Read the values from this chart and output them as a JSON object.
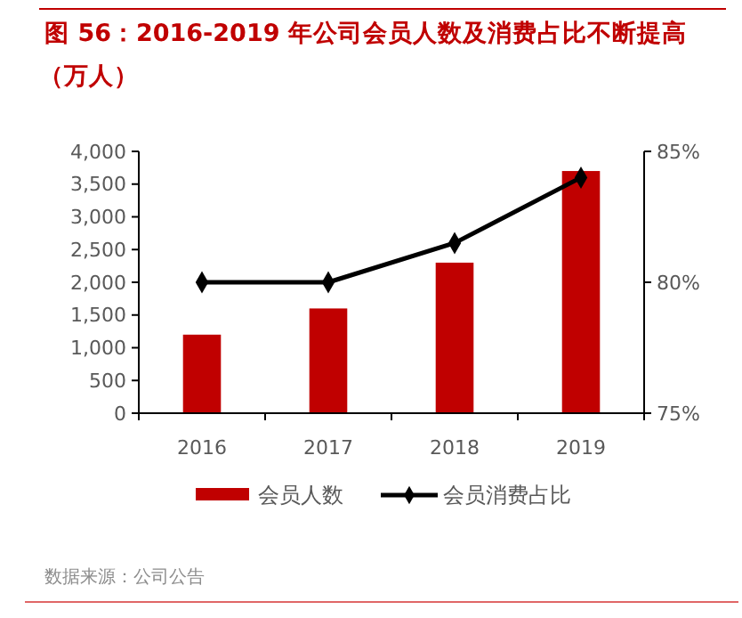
{
  "chart_data": {
    "type": "bar",
    "title": "图 56：2016-2019 年公司会员人数及消费占比不断提高",
    "subtitle": "（万人）",
    "categories": [
      "2016",
      "2017",
      "2018",
      "2019"
    ],
    "series": [
      {
        "name": "会员人数",
        "color": "#c00000",
        "values": [
          1200,
          1600,
          2300,
          3700
        ]
      },
      {
        "name": "会员消费占比",
        "type": "line",
        "axis": "y2",
        "color": "#000000",
        "marker": "diamond",
        "values": [
          80,
          80,
          81.5,
          84
        ]
      }
    ],
    "ylim": [
      0,
      4000
    ],
    "yticks": [
      {
        "value": 0,
        "label": "0"
      },
      {
        "value": 500,
        "label": "500"
      },
      {
        "value": 1000,
        "label": "1,000"
      },
      {
        "value": 1500,
        "label": "1,500"
      },
      {
        "value": 2000,
        "label": "2,000"
      },
      {
        "value": 2500,
        "label": "2,500"
      },
      {
        "value": 3000,
        "label": "3,000"
      },
      {
        "value": 3500,
        "label": "3,500"
      },
      {
        "value": 4000,
        "label": "4,000"
      }
    ],
    "y2lim": [
      75,
      85
    ],
    "y2ticks": [
      {
        "value": 75,
        "label": "75%"
      },
      {
        "value": 80,
        "label": "80%"
      },
      {
        "value": 85,
        "label": "85%"
      }
    ],
    "grid": false,
    "legend": "bottom",
    "annotations": [
      "数据来源：公司公告"
    ]
  }
}
